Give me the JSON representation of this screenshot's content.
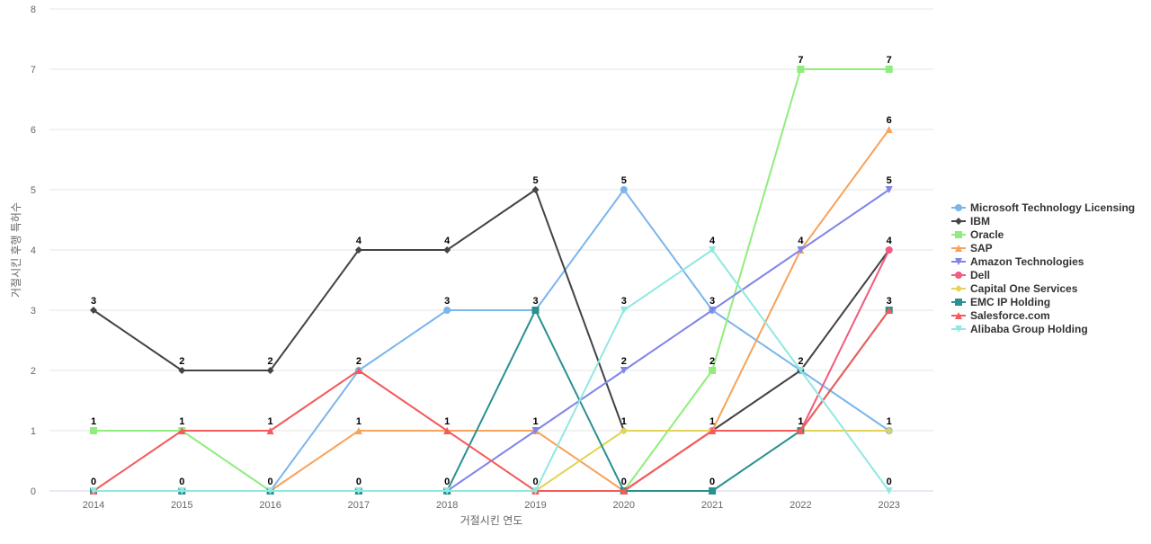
{
  "chart_data": {
    "type": "line",
    "x": [
      "2014",
      "2015",
      "2016",
      "2017",
      "2018",
      "2019",
      "2020",
      "2021",
      "2022",
      "2023"
    ],
    "xlabel": "거절시킨 연도",
    "ylabel": "거절시킨 후행 특허수",
    "ylim": [
      0,
      8
    ],
    "yticks": [
      0,
      1,
      2,
      3,
      4,
      5,
      6,
      7,
      8
    ],
    "grid": true,
    "legend_position": "right",
    "series": [
      {
        "name": "Microsoft Technology Licensing",
        "color": "#7cb5ec",
        "marker": "circle",
        "values": [
          0,
          0,
          0,
          2,
          3,
          3,
          5,
          3,
          2,
          1
        ]
      },
      {
        "name": "IBM",
        "color": "#434348",
        "marker": "diamond",
        "values": [
          3,
          2,
          2,
          4,
          4,
          5,
          1,
          1,
          2,
          4
        ]
      },
      {
        "name": "Oracle",
        "color": "#90ed7d",
        "marker": "square",
        "values": [
          1,
          1,
          0,
          0,
          0,
          0,
          0,
          2,
          7,
          7
        ]
      },
      {
        "name": "SAP",
        "color": "#f7a35c",
        "marker": "triangle",
        "values": [
          0,
          0,
          0,
          1,
          1,
          1,
          0,
          1,
          4,
          6
        ]
      },
      {
        "name": "Amazon Technologies",
        "color": "#8085e9",
        "marker": "triangle-down",
        "values": [
          0,
          0,
          0,
          0,
          0,
          1,
          2,
          3,
          4,
          5
        ]
      },
      {
        "name": "Dell",
        "color": "#f15c80",
        "marker": "circle",
        "values": [
          0,
          0,
          0,
          0,
          0,
          0,
          0,
          1,
          1,
          4
        ]
      },
      {
        "name": "Capital One Services",
        "color": "#e4d354",
        "marker": "diamond",
        "values": [
          0,
          0,
          0,
          0,
          0,
          0,
          1,
          1,
          1,
          1
        ]
      },
      {
        "name": "EMC IP Holding",
        "color": "#2b908f",
        "marker": "square",
        "values": [
          0,
          0,
          0,
          0,
          0,
          3,
          0,
          0,
          1,
          3
        ]
      },
      {
        "name": "Salesforce.com",
        "color": "#f45b5b",
        "marker": "triangle",
        "values": [
          0,
          1,
          1,
          2,
          1,
          0,
          0,
          1,
          1,
          3
        ]
      },
      {
        "name": "Alibaba Group Holding",
        "color": "#91e8e1",
        "marker": "triangle-down",
        "values": [
          0,
          0,
          0,
          0,
          0,
          0,
          3,
          4,
          2,
          0
        ]
      }
    ],
    "top_labels": [
      3,
      2,
      2,
      4,
      4,
      5,
      5,
      4,
      7,
      7
    ],
    "data_labels": [
      [
        3,
        2,
        2,
        4,
        4,
        5,
        5,
        4,
        7,
        7
      ],
      [
        1,
        1,
        1,
        2,
        3,
        3,
        3,
        3,
        4,
        6
      ],
      [
        0,
        0,
        0,
        1,
        1,
        1,
        2,
        2,
        2,
        5
      ],
      [
        null,
        null,
        null,
        0,
        0,
        0,
        1,
        1,
        1,
        4
      ],
      [
        null,
        null,
        null,
        null,
        null,
        null,
        0,
        0,
        1,
        3
      ],
      [
        null,
        null,
        null,
        null,
        null,
        null,
        null,
        null,
        null,
        1
      ],
      [
        null,
        null,
        null,
        null,
        null,
        null,
        null,
        null,
        null,
        0
      ]
    ]
  }
}
